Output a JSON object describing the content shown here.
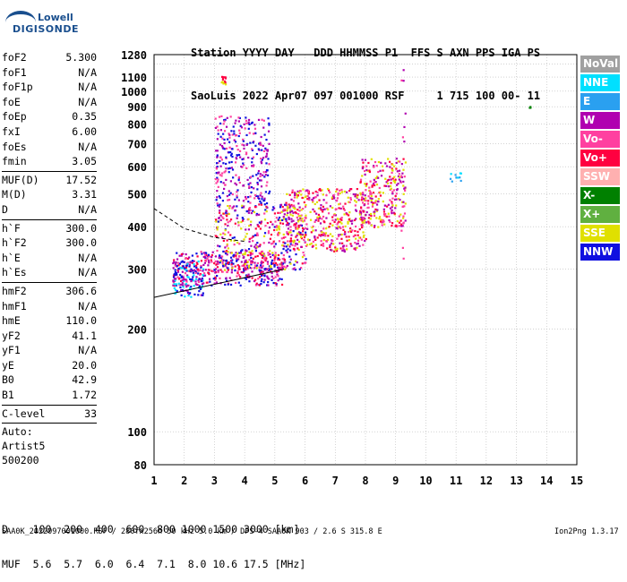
{
  "logo": {
    "line1": "Lowell",
    "line2": "DIGISONDE"
  },
  "header": {
    "line1": "Station YYYY DAY   DDD HHMMSS P1  FFS S AXN PPS IGA PS",
    "line2": "SaoLuis 2022 Apr07 097 001000 RSF     1 715 100 00- 11"
  },
  "params": {
    "group1": [
      {
        "k": "foF2",
        "v": "5.300"
      },
      {
        "k": "foF1",
        "v": "N/A"
      },
      {
        "k": "foF1p",
        "v": "N/A"
      },
      {
        "k": "foE",
        "v": "N/A"
      },
      {
        "k": "foEp",
        "v": "0.35"
      },
      {
        "k": "fxI",
        "v": "6.00"
      },
      {
        "k": "foEs",
        "v": "N/A"
      },
      {
        "k": "fmin",
        "v": "3.05"
      }
    ],
    "group2": [
      {
        "k": "MUF(D)",
        "v": "17.52"
      },
      {
        "k": "M(D)",
        "v": "3.31"
      },
      {
        "k": "D",
        "v": "N/A"
      }
    ],
    "group3": [
      {
        "k": "h`F",
        "v": "300.0"
      },
      {
        "k": "h`F2",
        "v": "300.0"
      },
      {
        "k": "h`E",
        "v": "N/A"
      },
      {
        "k": "h`Es",
        "v": "N/A"
      }
    ],
    "group4": [
      {
        "k": "hmF2",
        "v": "306.6"
      },
      {
        "k": "hmF1",
        "v": "N/A"
      },
      {
        "k": "hmE",
        "v": "110.0"
      },
      {
        "k": "yF2",
        "v": "41.1"
      },
      {
        "k": "yF1",
        "v": "N/A"
      },
      {
        "k": "yE",
        "v": "20.0"
      },
      {
        "k": "B0",
        "v": "42.9"
      },
      {
        "k": "B1",
        "v": "1.72"
      }
    ],
    "group5": [
      {
        "k": "C-level",
        "v": "33"
      }
    ],
    "auto": [
      "Auto:",
      "Artist5",
      "500200"
    ]
  },
  "legend": [
    {
      "label": "NoVal",
      "color": "#a0a0a0"
    },
    {
      "label": "NNE",
      "color": "#00e0ff"
    },
    {
      "label": "E",
      "color": "#2aa0f0"
    },
    {
      "label": "W",
      "color": "#b000b0"
    },
    {
      "label": "Vo-",
      "color": "#ff40a0"
    },
    {
      "label": "Vo+",
      "color": "#ff0040"
    },
    {
      "label": "SSW",
      "color": "#ffb0b0"
    },
    {
      "label": "X-",
      "color": "#008000"
    },
    {
      "label": "X+",
      "color": "#60b040"
    },
    {
      "label": "SSE",
      "color": "#e0e000"
    },
    {
      "label": "NNW",
      "color": "#1010e0"
    }
  ],
  "footer": {
    "line1": "D    100  200  400  600  800 1000 1500 3000 [km]",
    "line2": "MUF  5.6  5.7  6.0  6.4  7.1  8.0 10.6 17.5 [MHz]",
    "bottom": "SAA0K_2022097001000.RSF / 280fx256h 50 kHz 5.0 km / DPS-4 SAA0K 903 / 2.6 S 315.8 E",
    "version": "Ion2Png 1.3.17"
  },
  "chart_data": {
    "type": "scatter",
    "title": "",
    "xlabel": "",
    "ylabel": "",
    "xlim": [
      1,
      15
    ],
    "ylim": [
      80,
      1280
    ],
    "y_scale": "log",
    "xticks": [
      "1",
      "2",
      "3",
      "4",
      "5",
      "6",
      "7",
      "8",
      "9",
      "10",
      "11",
      "12",
      "13",
      "14",
      "15"
    ],
    "yticks": [
      "80",
      "100",
      "200",
      "300",
      "400",
      "500",
      "600",
      "700",
      "800",
      "900",
      "1000",
      "1100",
      "1280"
    ],
    "grid": true,
    "legend_position": "right",
    "profile_line": [
      [
        1.0,
        248
      ],
      [
        5.3,
        300
      ]
    ],
    "profile_dashed": [
      [
        1.0,
        452
      ],
      [
        2.0,
        395
      ],
      [
        3.0,
        372
      ],
      [
        4.0,
        362
      ]
    ],
    "clusters": [
      {
        "name": "F-trace base",
        "color_set": [
          "#b000b0",
          "#ff0040",
          "#1010e0",
          "#ff40a0"
        ],
        "x": [
          1.6,
          5.3
        ],
        "y": [
          270,
          340
        ],
        "n": 380
      },
      {
        "name": "F-trace spread",
        "color_set": [
          "#b000b0",
          "#ff0040",
          "#ff40a0",
          "#1010e0",
          "#e0e000"
        ],
        "x": [
          3.0,
          6.0
        ],
        "y": [
          300,
          470
        ],
        "n": 420
      },
      {
        "name": "F-trace mid",
        "color_set": [
          "#ff0040",
          "#b000b0",
          "#ff40a0",
          "#e0e000"
        ],
        "x": [
          5.3,
          8.0
        ],
        "y": [
          340,
          520
        ],
        "n": 420
      },
      {
        "name": "F-trace upper",
        "color_set": [
          "#b000b0",
          "#ff0040",
          "#ff40a0",
          "#e0e000"
        ],
        "x": [
          7.8,
          9.3
        ],
        "y": [
          400,
          640
        ],
        "n": 260
      },
      {
        "name": "spread-F plume",
        "color_set": [
          "#b000b0",
          "#ff40a0",
          "#1010e0"
        ],
        "x": [
          3.0,
          4.8
        ],
        "y": [
          470,
          860
        ],
        "n": 300
      },
      {
        "name": "low band",
        "color_set": [
          "#1010e0",
          "#b000b0",
          "#00e0ff"
        ],
        "x": [
          1.6,
          2.6
        ],
        "y": [
          250,
          320
        ],
        "n": 120
      },
      {
        "name": "1100 km echo",
        "color_set": [
          "#e0e000",
          "#ff0040"
        ],
        "x": [
          3.2,
          3.35
        ],
        "y": [
          1040,
          1110
        ],
        "n": 14
      },
      {
        "name": "x 9.2 column",
        "color_set": [
          "#ff40a0",
          "#b000b0"
        ],
        "x": [
          9.15,
          9.3
        ],
        "y": [
          300,
          1200
        ],
        "n": 16
      },
      {
        "name": "NNE scatter",
        "color_set": [
          "#00e0ff",
          "#2aa0f0"
        ],
        "x": [
          10.6,
          11.4
        ],
        "y": [
          540,
          580
        ],
        "n": 10
      },
      {
        "name": "X- point",
        "color_set": [
          "#008000"
        ],
        "x": [
          13.4,
          13.45
        ],
        "y": [
          895,
          905
        ],
        "n": 3
      }
    ]
  }
}
